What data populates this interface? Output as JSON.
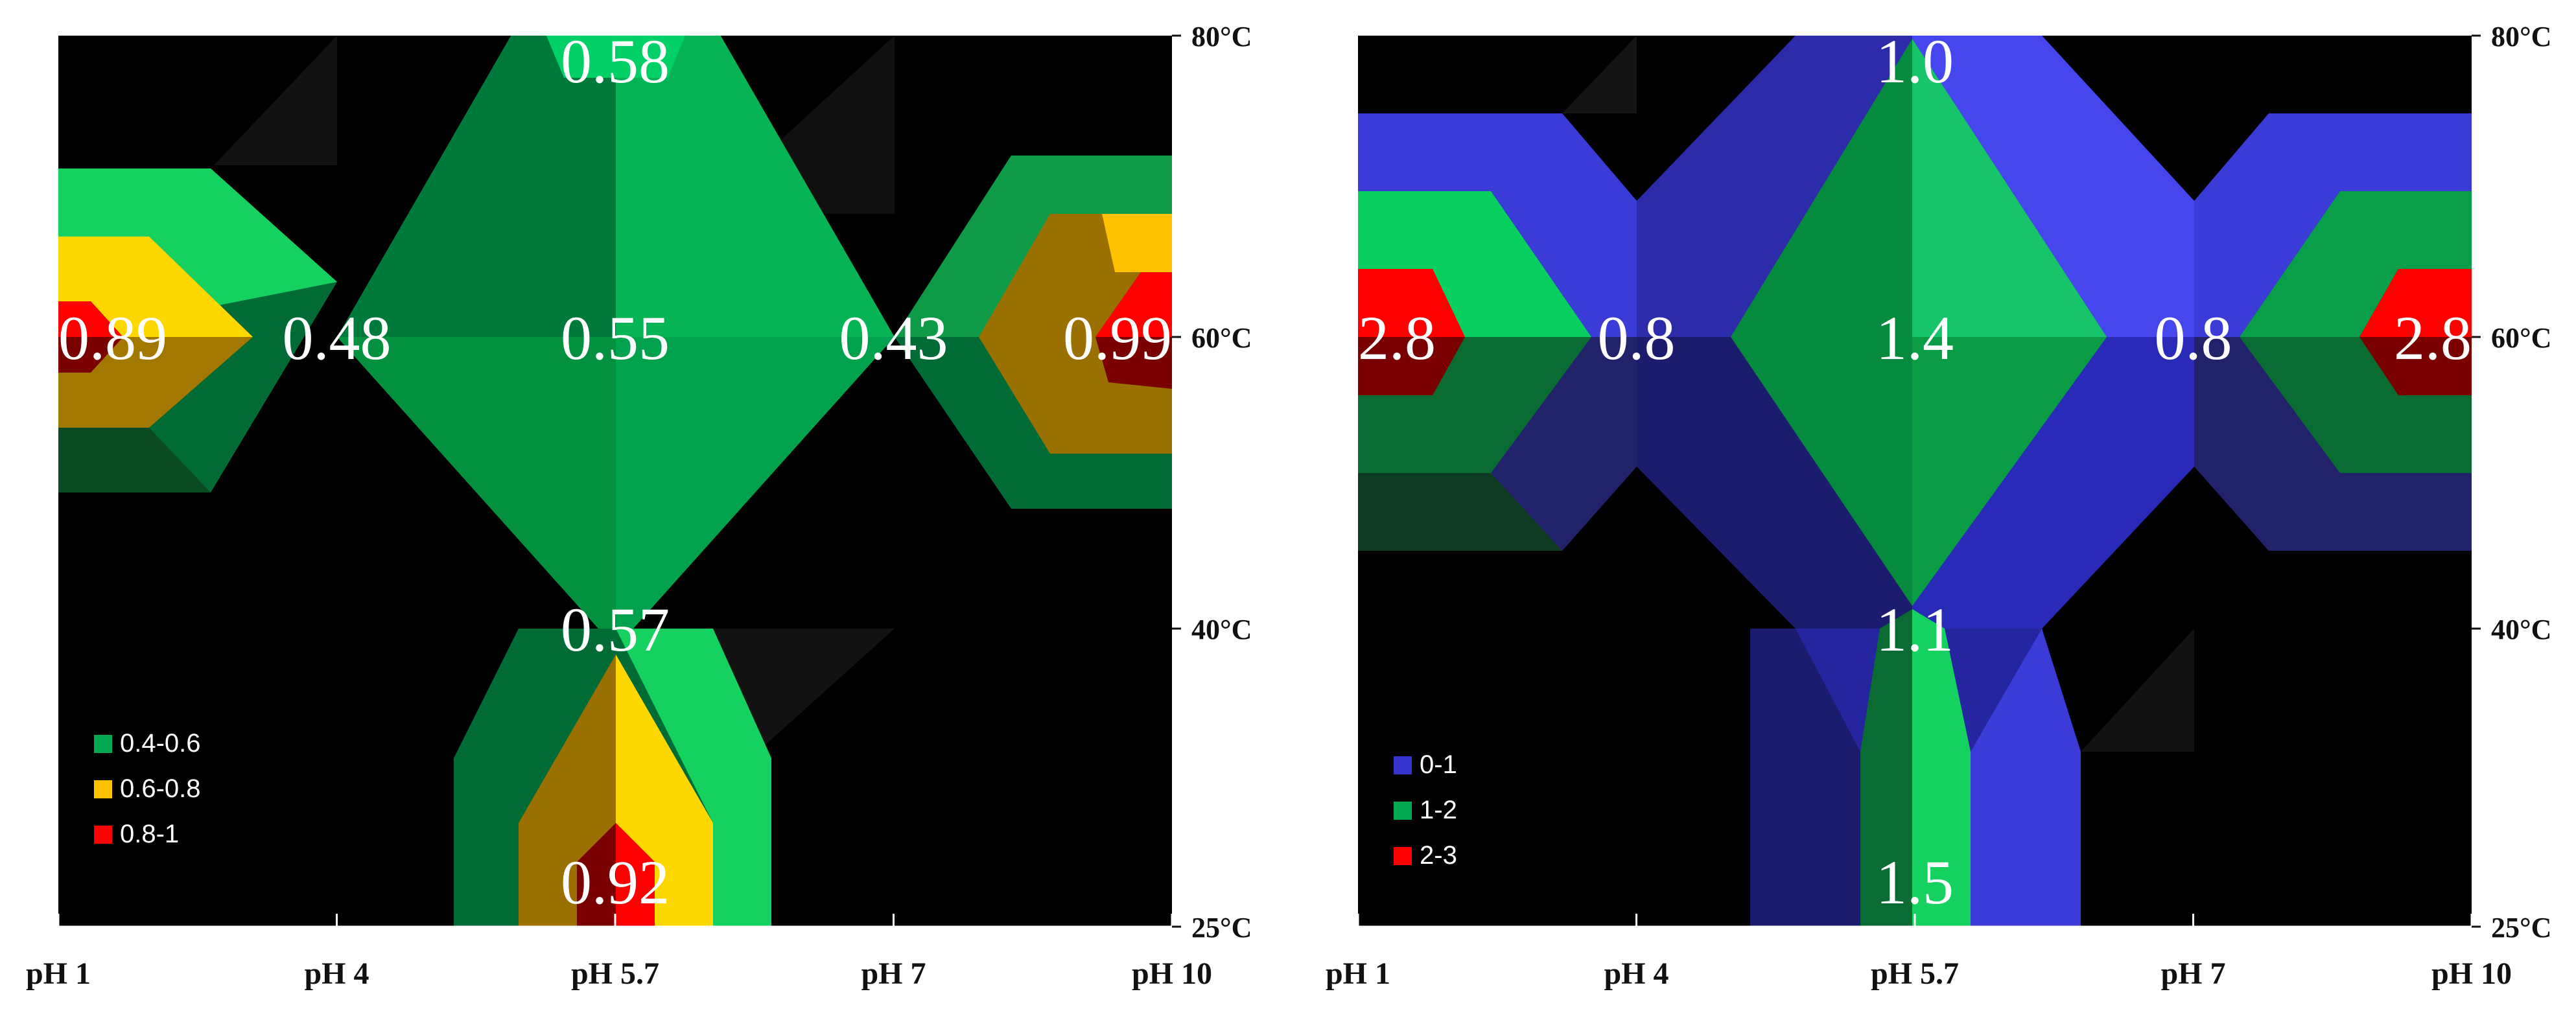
{
  "chart_data": [
    {
      "type": "heatmap",
      "x_categories": [
        "pH 1",
        "pH 4",
        "pH 5.7",
        "pH 7",
        "pH 10"
      ],
      "y_ticks": [
        "25°C",
        "40°C",
        "60°C",
        "80°C"
      ],
      "grid": false,
      "legend_position": "bottom-left",
      "legend": [
        {
          "label": "0.4-0.6",
          "color": "#00a94f"
        },
        {
          "label": "0.6-0.8",
          "color": "#ffc000"
        },
        {
          "label": "0.8-1",
          "color": "#ff0000"
        }
      ],
      "points": [
        {
          "ph": "pH 1",
          "temperature": "60°C",
          "value": "0.89"
        },
        {
          "ph": "pH 4",
          "temperature": "60°C",
          "value": "0.48"
        },
        {
          "ph": "pH 5.7",
          "temperature": "60°C",
          "value": "0.55"
        },
        {
          "ph": "pH 7",
          "temperature": "60°C",
          "value": "0.43"
        },
        {
          "ph": "pH 10",
          "temperature": "60°C",
          "value": "0.99"
        },
        {
          "ph": "pH 5.7",
          "temperature": "80°C",
          "value": "0.58"
        },
        {
          "ph": "pH 5.7",
          "temperature": "40°C",
          "value": "0.57"
        },
        {
          "ph": "pH 5.7",
          "temperature": "25°C",
          "value": "0.92"
        }
      ]
    },
    {
      "type": "heatmap",
      "x_categories": [
        "pH 1",
        "pH 4",
        "pH 5.7",
        "pH 7",
        "pH 10"
      ],
      "y_ticks": [
        "25°C",
        "40°C",
        "60°C",
        "80°C"
      ],
      "grid": false,
      "legend_position": "bottom-left",
      "legend": [
        {
          "label": "0-1",
          "color": "#3333cc"
        },
        {
          "label": "1-2",
          "color": "#00a94f"
        },
        {
          "label": "2-3",
          "color": "#ff0000"
        }
      ],
      "points": [
        {
          "ph": "pH 1",
          "temperature": "60°C",
          "value": "2.8"
        },
        {
          "ph": "pH 4",
          "temperature": "60°C",
          "value": "0.8"
        },
        {
          "ph": "pH 5.7",
          "temperature": "60°C",
          "value": "1.4"
        },
        {
          "ph": "pH 7",
          "temperature": "60°C",
          "value": "0.8"
        },
        {
          "ph": "pH 10",
          "temperature": "60°C",
          "value": "2.8"
        },
        {
          "ph": "pH 5.7",
          "temperature": "80°C",
          "value": "1.0"
        },
        {
          "ph": "pH 5.7",
          "temperature": "40°C",
          "value": "1.1"
        },
        {
          "ph": "pH 5.7",
          "temperature": "25°C",
          "value": "1.5"
        }
      ]
    }
  ]
}
